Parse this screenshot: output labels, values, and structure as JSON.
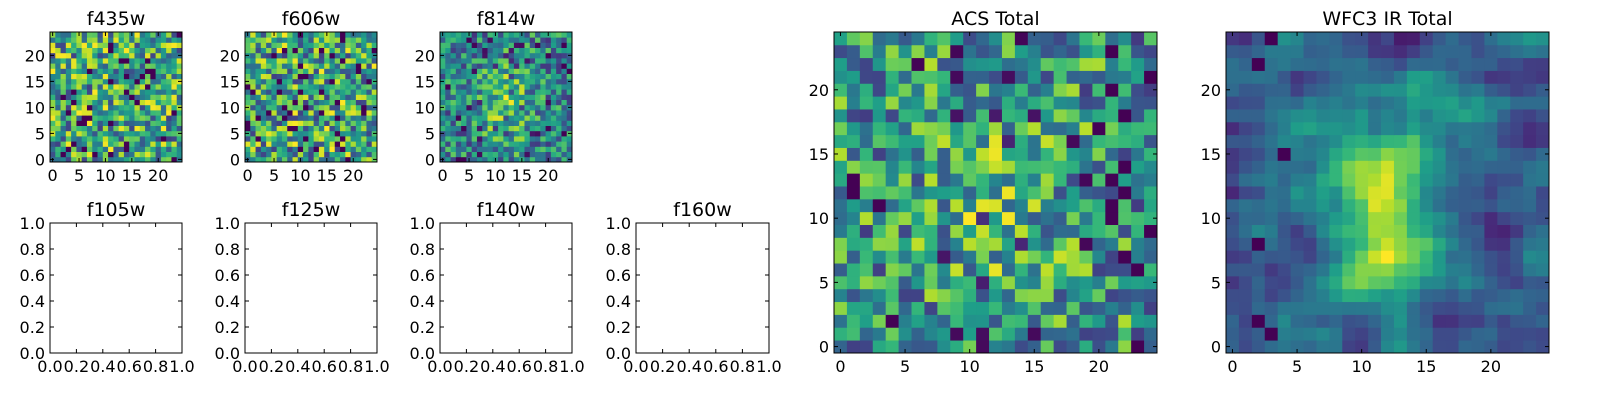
{
  "chart_data": [
    {
      "type": "heatmap",
      "title": "f435w",
      "grid_size": 25,
      "xticks": [
        "0",
        "5",
        "10",
        "15",
        "20"
      ],
      "yticks": [
        "0",
        "5",
        "10",
        "15",
        "20"
      ],
      "colormap": "viridis",
      "xlim": [
        -0.5,
        24.5
      ],
      "ylim": [
        -0.5,
        24.5
      ],
      "seed": 11,
      "noise": 1.0,
      "blob": 0.0
    },
    {
      "type": "heatmap",
      "title": "f606w",
      "grid_size": 25,
      "xticks": [
        "0",
        "5",
        "10",
        "15",
        "20"
      ],
      "yticks": [
        "0",
        "5",
        "10",
        "15",
        "20"
      ],
      "colormap": "viridis",
      "xlim": [
        -0.5,
        24.5
      ],
      "ylim": [
        -0.5,
        24.5
      ],
      "seed": 23,
      "noise": 1.0,
      "blob": 0.0
    },
    {
      "type": "heatmap",
      "title": "f814w",
      "grid_size": 25,
      "xticks": [
        "0",
        "5",
        "10",
        "15",
        "20"
      ],
      "yticks": [
        "0",
        "5",
        "10",
        "15",
        "20"
      ],
      "colormap": "viridis",
      "xlim": [
        -0.5,
        24.5
      ],
      "ylim": [
        -0.5,
        24.5
      ],
      "seed": 37,
      "noise": 1.0,
      "blob": 0.35
    },
    {
      "type": "empty",
      "title": "f105w",
      "xticks": [
        "0.0",
        "0.2",
        "0.4",
        "0.6",
        "0.8",
        "1.0"
      ],
      "yticks": [
        "0.0",
        "0.2",
        "0.4",
        "0.6",
        "0.8",
        "1.0"
      ],
      "xlim": [
        0,
        1
      ],
      "ylim": [
        0,
        1
      ]
    },
    {
      "type": "empty",
      "title": "f125w",
      "xticks": [
        "0.0",
        "0.2",
        "0.4",
        "0.6",
        "0.8",
        "1.0"
      ],
      "yticks": [
        "0.0",
        "0.2",
        "0.4",
        "0.6",
        "0.8",
        "1.0"
      ],
      "xlim": [
        0,
        1
      ],
      "ylim": [
        0,
        1
      ]
    },
    {
      "type": "empty",
      "title": "f140w",
      "xticks": [
        "0.0",
        "0.2",
        "0.4",
        "0.6",
        "0.8",
        "1.0"
      ],
      "yticks": [
        "0.0",
        "0.2",
        "0.4",
        "0.6",
        "0.8",
        "1.0"
      ],
      "xlim": [
        0,
        1
      ],
      "ylim": [
        0,
        1
      ]
    },
    {
      "type": "empty",
      "title": "f160w",
      "xticks": [
        "0.0",
        "0.2",
        "0.4",
        "0.6",
        "0.8",
        "1.0"
      ],
      "yticks": [
        "0.0",
        "0.2",
        "0.4",
        "0.6",
        "0.8",
        "1.0"
      ],
      "xlim": [
        0,
        1
      ],
      "ylim": [
        0,
        1
      ]
    },
    {
      "type": "heatmap",
      "title": "ACS Total",
      "grid_size": 25,
      "xticks": [
        "0",
        "5",
        "10",
        "15",
        "20"
      ],
      "yticks": [
        "0",
        "5",
        "10",
        "15",
        "20"
      ],
      "colormap": "viridis",
      "xlim": [
        -0.5,
        24.5
      ],
      "ylim": [
        -0.5,
        24.5
      ],
      "seed": 53,
      "noise": 1.0,
      "blob": 0.15
    },
    {
      "type": "heatmap",
      "title": "WFC3 IR Total",
      "grid_size": 25,
      "xticks": [
        "0",
        "5",
        "10",
        "15",
        "20"
      ],
      "yticks": [
        "0",
        "5",
        "10",
        "15",
        "20"
      ],
      "colormap": "viridis",
      "xlim": [
        -0.5,
        24.5
      ],
      "ylim": [
        -0.5,
        24.5
      ],
      "seed": 71,
      "noise": 0.45,
      "blob": 0.9,
      "blob_center": [
        12,
        11
      ],
      "dark_spots": [
        [
          2,
          2
        ],
        [
          3,
          1
        ],
        [
          2,
          8
        ],
        [
          4,
          15
        ],
        [
          2,
          22
        ],
        [
          3,
          24
        ]
      ]
    }
  ]
}
